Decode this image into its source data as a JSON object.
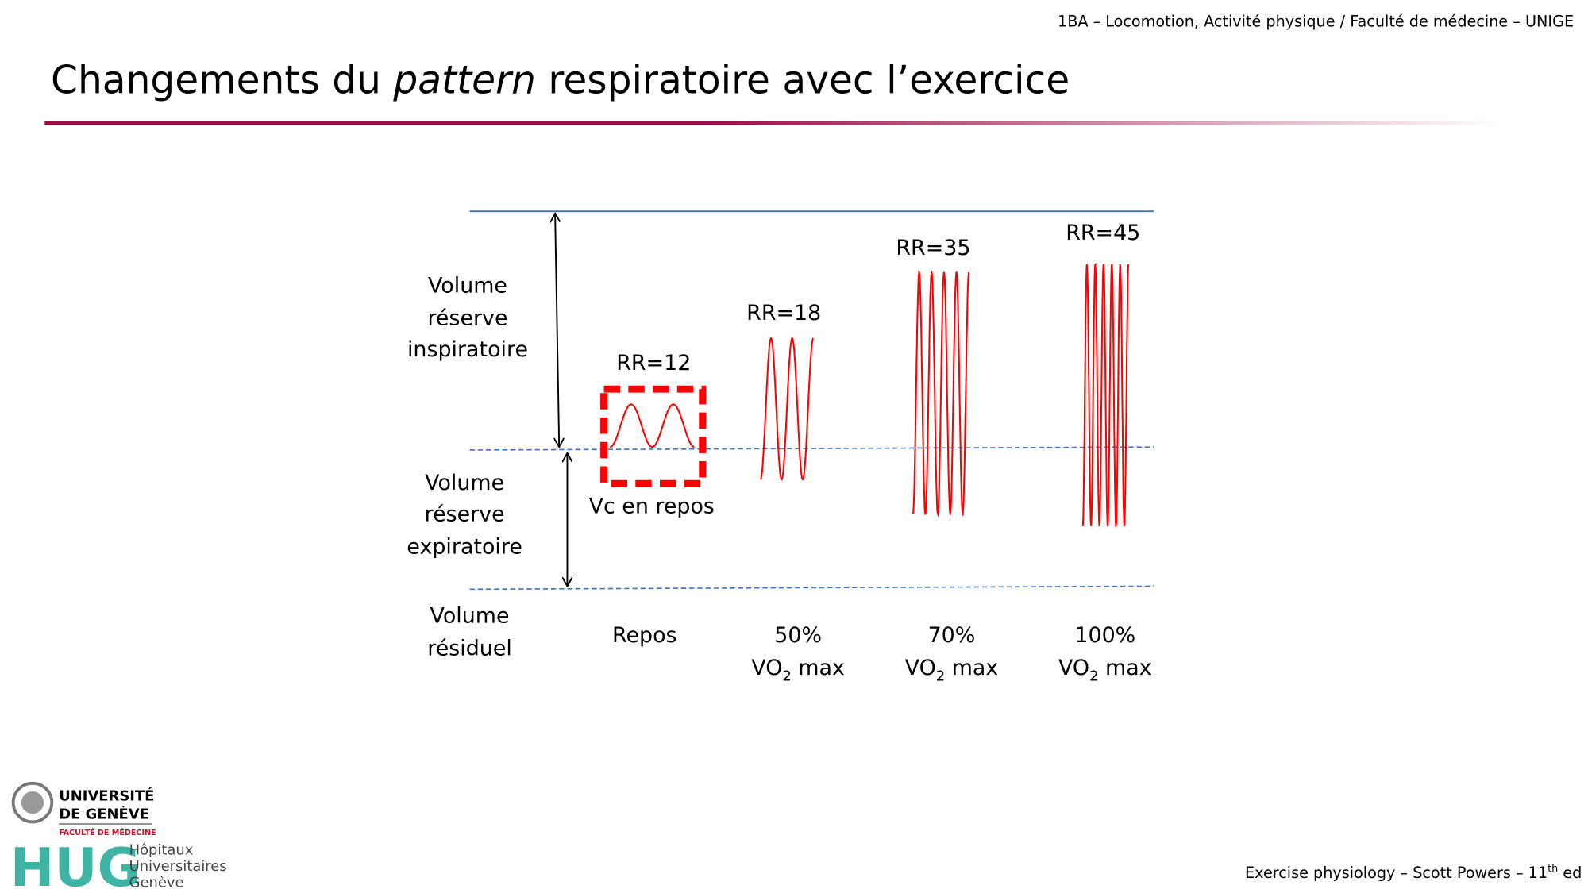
{
  "header": {
    "course": "1BA – Locomotion, Activité physique / Faculté de médecine – UNIGE"
  },
  "title": {
    "before": "Changements du ",
    "italic": "pattern",
    "after": " respiratoire avec l’exercice"
  },
  "volumes": {
    "inspiratory": [
      "Volume",
      "réserve",
      "inspiratoire"
    ],
    "expiratory": [
      "Volume",
      "réserve",
      "expiratoire"
    ],
    "residual": [
      "Volume",
      "résiduel"
    ]
  },
  "rates": [
    "RR=12",
    "RR=18",
    "RR=35",
    "RR=45"
  ],
  "box_label": "Vc en repos",
  "conditions": [
    {
      "line1": "Repos"
    },
    {
      "line1": "50%",
      "vo": "VO",
      "sub": "2",
      "rest": " max"
    },
    {
      "line1": "70%",
      "vo": "VO",
      "sub": "2",
      "rest": " max"
    },
    {
      "line1": "100%",
      "vo": "VO",
      "sub": "2",
      "rest": " max"
    }
  ],
  "logos": {
    "unige": [
      "UNIVERSITÉ",
      "DE GENÈVE"
    ],
    "faculty": "FACULTÉ DE MÉDECINE",
    "hug": "HUG",
    "hospital": [
      "Hôpitaux",
      "Universitaires",
      "Genève"
    ]
  },
  "footer": {
    "text": "Exercise physiology – Scott Powers – 11",
    "sup": "th",
    "end": " ed"
  }
}
